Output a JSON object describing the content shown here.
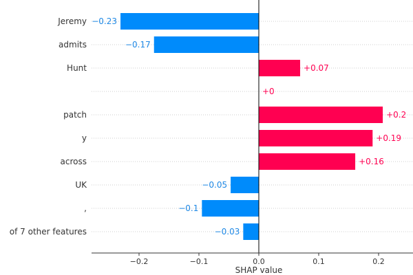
{
  "chart_data": {
    "type": "bar",
    "orientation": "horizontal",
    "title": "",
    "xlabel": "SHAP value",
    "ylabel": "",
    "xlim": [
      -0.28,
      0.26
    ],
    "xticks": [
      -0.2,
      -0.1,
      0.0,
      0.1,
      0.2
    ],
    "xtick_labels": [
      "−0.2",
      "−0.1",
      "0.0",
      "0.1",
      "0.2"
    ],
    "grid": "horizontal dotted",
    "categories": [
      "Jeremy",
      "admits",
      "Hunt",
      "",
      "patch",
      "y",
      "across",
      "UK",
      ",",
      "of 7 other features"
    ],
    "values": [
      -0.231,
      -0.175,
      0.069,
      0.0,
      0.207,
      0.19,
      0.161,
      -0.047,
      -0.095,
      -0.026
    ],
    "value_labels": [
      "−0.23",
      "−0.17",
      "+0.07",
      "+0",
      "+0.2",
      "+0.19",
      "+0.16",
      "−0.05",
      "−0.1",
      "−0.03"
    ],
    "colors": {
      "positive": "#ff0051",
      "negative": "#008bfb",
      "positive_text": "#ff0051",
      "negative_text": "#1e88e5"
    }
  }
}
